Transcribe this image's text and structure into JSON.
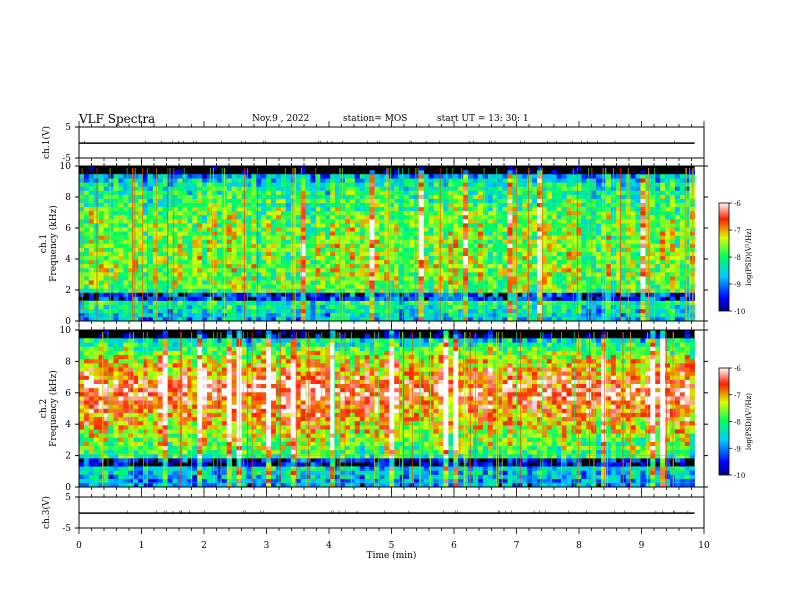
{
  "header": {
    "title": "VLF Spectra",
    "date": "Nov.9  , 2022",
    "station": "station= MOS",
    "start": "start  UT  =   13: 30: 1"
  },
  "chart_data": [
    {
      "type": "line",
      "panel": "ch1-waveform",
      "ylabel": "ch.1(V)",
      "yticks": [
        "5",
        "-5"
      ],
      "ylim": [
        -5,
        5
      ],
      "xlim": [
        0,
        10
      ],
      "series": [
        {
          "values": [
            -0.2,
            -0.2,
            -0.2,
            -0.2,
            -0.2,
            -0.2,
            -0.2,
            -0.2,
            -0.2,
            -0.2,
            -0.2
          ]
        }
      ]
    },
    {
      "type": "heatmap",
      "panel": "ch1-spectrogram",
      "ylabel_top": "ch.1",
      "ylabel": "Frequency (kHz)",
      "xlim": [
        0,
        9.85
      ],
      "ylim": [
        0,
        10
      ],
      "yticks": [
        "0",
        "2",
        "4",
        "6",
        "8",
        "10"
      ],
      "intensity_profile": [
        0.3,
        0.45,
        0.55,
        0.6,
        0.6,
        0.6,
        0.58,
        0.55,
        0.5,
        0.4,
        0.15
      ],
      "colorbar": {
        "label": "log(PSD)(V²/Hz)",
        "ticks": [
          "-6",
          "-7",
          "-8",
          "-9",
          "-10"
        ],
        "range": [
          -10,
          -6
        ]
      }
    },
    {
      "type": "heatmap",
      "panel": "ch2-spectrogram",
      "ylabel_top": "ch.2",
      "ylabel": "Frequency (kHz)",
      "xlim": [
        0,
        9.85
      ],
      "ylim": [
        0,
        10
      ],
      "yticks": [
        "0",
        "2",
        "4",
        "6",
        "8",
        "10"
      ],
      "intensity_profile": [
        0.25,
        0.35,
        0.5,
        0.6,
        0.72,
        0.82,
        0.92,
        0.82,
        0.7,
        0.5,
        0.2
      ],
      "colorbar": {
        "label": "log(PSD)(V²/Hz)",
        "ticks": [
          "-6",
          "-7",
          "-8",
          "-9",
          "-10"
        ],
        "range": [
          -10,
          -6
        ]
      }
    },
    {
      "type": "line",
      "panel": "ch3-waveform",
      "ylabel": "ch.3(V)",
      "yticks": [
        "5",
        "-5"
      ],
      "ylim": [
        -5,
        5
      ],
      "xlim": [
        0,
        10
      ],
      "series": [
        {
          "values": [
            -0.2,
            -0.2,
            -0.2,
            -0.2,
            -0.2,
            -0.2,
            -0.2,
            -0.2,
            -0.2,
            -0.2,
            -0.2
          ]
        }
      ]
    }
  ],
  "xaxis": {
    "label": "Time  (min)",
    "ticks": [
      "0",
      "1",
      "2",
      "3",
      "4",
      "5",
      "6",
      "7",
      "8",
      "9",
      "10"
    ]
  },
  "colors": {
    "spectrogram_background": "#000000",
    "axes": "#000000"
  }
}
